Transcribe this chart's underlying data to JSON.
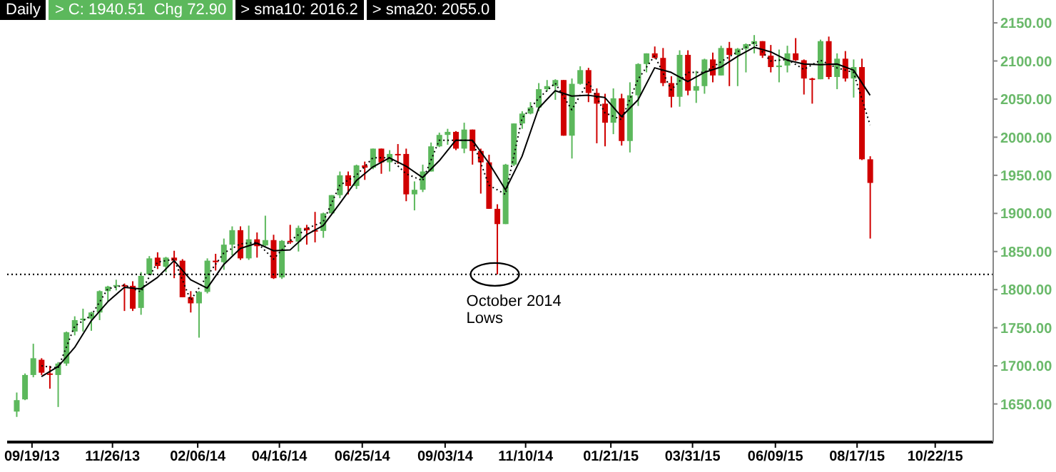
{
  "chart_data": {
    "type": "candlestick",
    "annotations": [
      "Daily",
      "> C: 1940.51  Chg 72.90",
      "> sma10: 2016.2",
      "> sma20: 2055.0",
      {
        "text": "October 2014\nLows",
        "x": "2014-10-15",
        "y": 1820
      }
    ],
    "xlim": [
      "2013-08-29",
      "2015-12-10"
    ],
    "xticks": [
      {
        "value": "2013-09-19",
        "label": "09/19/13"
      },
      {
        "value": "2013-11-26",
        "label": "11/26/13"
      },
      {
        "value": "2014-02-06",
        "label": "02/06/14"
      },
      {
        "value": "2014-04-16",
        "label": "04/16/14"
      },
      {
        "value": "2014-06-25",
        "label": "06/25/14"
      },
      {
        "value": "2014-09-03",
        "label": "09/03/14"
      },
      {
        "value": "2014-11-10",
        "label": "11/10/14"
      },
      {
        "value": "2015-01-21",
        "label": "01/21/15"
      },
      {
        "value": "2015-03-31",
        "label": "03/31/15"
      },
      {
        "value": "2015-06-09",
        "label": "06/09/15"
      },
      {
        "value": "2015-08-17",
        "label": "08/17/15"
      },
      {
        "value": "2015-10-22",
        "label": "10/22/15"
      }
    ],
    "ylim": [
      1600,
      2180
    ],
    "yticks": [
      {
        "value": 1650,
        "label": "1650.00"
      },
      {
        "value": 1700,
        "label": "1700.00"
      },
      {
        "value": 1750,
        "label": "1750.00"
      },
      {
        "value": 1800,
        "label": "1800.00"
      },
      {
        "value": 1850,
        "label": "1850.00"
      },
      {
        "value": 1900,
        "label": "1900.00"
      },
      {
        "value": 1950,
        "label": "1950.00"
      },
      {
        "value": 2000,
        "label": "2000.00"
      },
      {
        "value": 2050,
        "label": "2050.00"
      },
      {
        "value": 2100,
        "label": "2100.00"
      },
      {
        "value": 2150,
        "label": "2150.00"
      }
    ],
    "tick_labels": "xy",
    "marker": "none",
    "ref_lines": [
      {
        "axis": "y",
        "value": 1820,
        "color": "#000000",
        "line_style": "dotted"
      }
    ],
    "series": [
      {
        "type": "candlestick",
        "x": [
          "2013-09-06",
          "2013-09-13",
          "2013-09-20",
          "2013-09-27",
          "2013-10-04",
          "2013-10-11",
          "2013-10-18",
          "2013-10-25",
          "2013-11-01",
          "2013-11-08",
          "2013-11-15",
          "2013-11-22",
          "2013-11-29",
          "2013-12-06",
          "2013-12-13",
          "2013-12-20",
          "2013-12-27",
          "2014-01-03",
          "2014-01-10",
          "2014-01-17",
          "2014-01-24",
          "2014-01-31",
          "2014-02-07",
          "2014-02-14",
          "2014-02-21",
          "2014-02-28",
          "2014-03-07",
          "2014-03-14",
          "2014-03-21",
          "2014-03-28",
          "2014-04-04",
          "2014-04-11",
          "2014-04-18",
          "2014-04-25",
          "2014-05-02",
          "2014-05-09",
          "2014-05-16",
          "2014-05-23",
          "2014-05-30",
          "2014-06-06",
          "2014-06-13",
          "2014-06-20",
          "2014-06-27",
          "2014-07-04",
          "2014-07-11",
          "2014-07-18",
          "2014-07-25",
          "2014-08-01",
          "2014-08-08",
          "2014-08-15",
          "2014-08-22",
          "2014-08-29",
          "2014-09-05",
          "2014-09-12",
          "2014-09-19",
          "2014-09-26",
          "2014-10-03",
          "2014-10-10",
          "2014-10-17",
          "2014-10-24",
          "2014-10-31",
          "2014-11-07",
          "2014-11-14",
          "2014-11-21",
          "2014-11-28",
          "2014-12-05",
          "2014-12-12",
          "2014-12-19",
          "2014-12-26",
          "2015-01-02",
          "2015-01-09",
          "2015-01-16",
          "2015-01-23",
          "2015-01-30",
          "2015-02-06",
          "2015-02-13",
          "2015-02-20",
          "2015-02-27",
          "2015-03-06",
          "2015-03-13",
          "2015-03-20",
          "2015-03-27",
          "2015-04-03",
          "2015-04-10",
          "2015-04-17",
          "2015-04-24",
          "2015-05-01",
          "2015-05-08",
          "2015-05-15",
          "2015-05-22",
          "2015-05-29",
          "2015-06-05",
          "2015-06-12",
          "2015-06-19",
          "2015-06-26",
          "2015-07-03",
          "2015-07-10",
          "2015-07-17",
          "2015-07-24",
          "2015-07-31",
          "2015-08-07",
          "2015-08-14",
          "2015-08-21",
          "2015-08-28"
        ],
        "ohlc": [
          [
            1640,
            1665,
            1633,
            1655
          ],
          [
            1656,
            1690,
            1655,
            1688
          ],
          [
            1688,
            1729,
            1685,
            1710
          ],
          [
            1708,
            1710,
            1688,
            1691
          ],
          [
            1690,
            1700,
            1670,
            1690
          ],
          [
            1688,
            1705,
            1646,
            1703
          ],
          [
            1703,
            1745,
            1700,
            1744
          ],
          [
            1745,
            1765,
            1740,
            1760
          ],
          [
            1760,
            1775,
            1745,
            1762
          ],
          [
            1762,
            1771,
            1746,
            1770
          ],
          [
            1770,
            1799,
            1760,
            1798
          ],
          [
            1798,
            1805,
            1785,
            1804
          ],
          [
            1804,
            1813,
            1799,
            1806
          ],
          [
            1806,
            1808,
            1772,
            1805
          ],
          [
            1805,
            1811,
            1772,
            1775
          ],
          [
            1776,
            1823,
            1767,
            1818
          ],
          [
            1820,
            1844,
            1820,
            1841
          ],
          [
            1842,
            1849,
            1827,
            1831
          ],
          [
            1830,
            1843,
            1823,
            1842
          ],
          [
            1842,
            1851,
            1815,
            1838
          ],
          [
            1838,
            1840,
            1790,
            1790
          ],
          [
            1790,
            1798,
            1770,
            1782
          ],
          [
            1782,
            1798,
            1737,
            1797
          ],
          [
            1797,
            1841,
            1795,
            1838
          ],
          [
            1838,
            1847,
            1825,
            1836
          ],
          [
            1836,
            1867,
            1826,
            1859
          ],
          [
            1859,
            1883,
            1845,
            1878
          ],
          [
            1878,
            1883,
            1839,
            1841
          ],
          [
            1841,
            1884,
            1839,
            1866
          ],
          [
            1866,
            1875,
            1842,
            1857
          ],
          [
            1858,
            1897,
            1857,
            1865
          ],
          [
            1865,
            1872,
            1814,
            1815
          ],
          [
            1816,
            1865,
            1814,
            1864
          ],
          [
            1864,
            1885,
            1860,
            1863
          ],
          [
            1863,
            1884,
            1850,
            1881
          ],
          [
            1881,
            1885,
            1859,
            1878
          ],
          [
            1878,
            1902,
            1862,
            1877
          ],
          [
            1877,
            1901,
            1868,
            1900
          ],
          [
            1900,
            1924,
            1900,
            1924
          ],
          [
            1924,
            1955,
            1920,
            1950
          ],
          [
            1950,
            1955,
            1925,
            1936
          ],
          [
            1936,
            1964,
            1932,
            1963
          ],
          [
            1963,
            1968,
            1944,
            1960
          ],
          [
            1960,
            1985,
            1958,
            1985
          ],
          [
            1985,
            1985,
            1952,
            1967
          ],
          [
            1967,
            1983,
            1955,
            1978
          ],
          [
            1978,
            1991,
            1965,
            1978
          ],
          [
            1978,
            1985,
            1916,
            1925
          ],
          [
            1925,
            1942,
            1904,
            1931
          ],
          [
            1931,
            1964,
            1928,
            1955
          ],
          [
            1955,
            1993,
            1955,
            1988
          ],
          [
            1988,
            2006,
            1987,
            2003
          ],
          [
            2003,
            2011,
            1990,
            2007
          ],
          [
            2007,
            2008,
            1983,
            1985
          ],
          [
            1985,
            2019,
            1979,
            2010
          ],
          [
            2010,
            2010,
            1964,
            1982
          ],
          [
            1982,
            1985,
            1926,
            1967
          ],
          [
            1967,
            1977,
            1906,
            1906
          ],
          [
            1906,
            1912,
            1820,
            1886
          ],
          [
            1886,
            1965,
            1886,
            1964
          ],
          [
            1964,
            2018,
            1962,
            2018
          ],
          [
            2018,
            2034,
            2011,
            2031
          ],
          [
            2031,
            2046,
            2030,
            2039
          ],
          [
            2039,
            2071,
            2034,
            2063
          ],
          [
            2063,
            2075,
            2060,
            2067
          ],
          [
            2067,
            2076,
            2049,
            2075
          ],
          [
            2075,
            2075,
            2002,
            2002
          ],
          [
            2002,
            2077,
            1972,
            2070
          ],
          [
            2070,
            2093,
            2069,
            2088
          ],
          [
            2088,
            2091,
            2046,
            2058
          ],
          [
            2058,
            2064,
            1992,
            2044
          ],
          [
            2044,
            2057,
            1988,
            2019
          ],
          [
            2019,
            2064,
            2004,
            2051
          ],
          [
            2051,
            2057,
            1989,
            1995
          ],
          [
            1995,
            2072,
            1980,
            2055
          ],
          [
            2055,
            2097,
            2041,
            2096
          ],
          [
            2096,
            2110,
            2085,
            2110
          ],
          [
            2110,
            2119,
            2103,
            2104
          ],
          [
            2104,
            2117,
            2067,
            2071
          ],
          [
            2071,
            2080,
            2039,
            2053
          ],
          [
            2053,
            2114,
            2040,
            2108
          ],
          [
            2108,
            2114,
            2055,
            2061
          ],
          [
            2061,
            2087,
            2045,
            2067
          ],
          [
            2067,
            2103,
            2057,
            2102
          ],
          [
            2102,
            2111,
            2072,
            2081
          ],
          [
            2081,
            2120,
            2081,
            2117
          ],
          [
            2117,
            2125,
            2067,
            2108
          ],
          [
            2108,
            2117,
            2067,
            2116
          ],
          [
            2116,
            2123,
            2085,
            2122
          ],
          [
            2122,
            2134,
            2110,
            2126
          ],
          [
            2126,
            2126,
            2104,
            2107
          ],
          [
            2107,
            2121,
            2085,
            2092
          ],
          [
            2092,
            2115,
            2072,
            2094
          ],
          [
            2094,
            2120,
            2085,
            2110
          ],
          [
            2110,
            2130,
            2100,
            2101
          ],
          [
            2101,
            2102,
            2056,
            2077
          ],
          [
            2077,
            2078,
            2044,
            2076
          ],
          [
            2076,
            2128,
            2076,
            2126
          ],
          [
            2126,
            2132,
            2076,
            2079
          ],
          [
            2079,
            2110,
            2063,
            2103
          ],
          [
            2103,
            2113,
            2073,
            2077
          ],
          [
            2077,
            2102,
            2052,
            2092
          ],
          [
            2092,
            2103,
            1970,
            1971
          ],
          [
            1971,
            1975,
            1867,
            1940
          ]
        ],
        "colors": [
          "#5cb85c",
          "#5cb85c",
          "#5cb85c",
          "#d00000",
          "#d00000",
          "#5cb85c",
          "#5cb85c",
          "#5cb85c",
          "#5cb85c",
          "#5cb85c",
          "#5cb85c",
          "#5cb85c",
          "#5cb85c",
          "#d00000",
          "#d00000",
          "#5cb85c",
          "#5cb85c",
          "#d00000",
          "#5cb85c",
          "#d00000",
          "#d00000",
          "#d00000",
          "#5cb85c",
          "#5cb85c",
          "#d00000",
          "#5cb85c",
          "#5cb85c",
          "#d00000",
          "#5cb85c",
          "#d00000",
          "#5cb85c",
          "#d00000",
          "#5cb85c",
          "#d00000",
          "#5cb85c",
          "#d00000",
          "#d00000",
          "#5cb85c",
          "#5cb85c",
          "#5cb85c",
          "#d00000",
          "#5cb85c",
          "#d00000",
          "#5cb85c",
          "#d00000",
          "#5cb85c",
          "#d00000",
          "#d00000",
          "#5cb85c",
          "#5cb85c",
          "#5cb85c",
          "#5cb85c",
          "#5cb85c",
          "#d00000",
          "#5cb85c",
          "#d00000",
          "#d00000",
          "#d00000",
          "#d00000",
          "#5cb85c",
          "#5cb85c",
          "#5cb85c",
          "#5cb85c",
          "#5cb85c",
          "#5cb85c",
          "#5cb85c",
          "#d00000",
          "#5cb85c",
          "#5cb85c",
          "#d00000",
          "#d00000",
          "#d00000",
          "#5cb85c",
          "#d00000",
          "#5cb85c",
          "#5cb85c",
          "#5cb85c",
          "#d00000",
          "#d00000",
          "#d00000",
          "#5cb85c",
          "#d00000",
          "#5cb85c",
          "#5cb85c",
          "#d00000",
          "#5cb85c",
          "#d00000",
          "#5cb85c",
          "#5cb85c",
          "#5cb85c",
          "#d00000",
          "#d00000",
          "#5cb85c",
          "#5cb85c",
          "#d00000",
          "#d00000",
          "#d00000",
          "#5cb85c",
          "#d00000",
          "#5cb85c",
          "#d00000",
          "#5cb85c",
          "#d00000",
          "#d00000"
        ]
      },
      {
        "type": "line",
        "color": "#000000",
        "line_style": "dotted",
        "x": [
          "2013-09-27",
          "2013-10-11",
          "2013-10-25",
          "2013-11-08",
          "2013-11-22",
          "2013-12-06",
          "2013-12-20",
          "2014-01-03",
          "2014-01-17",
          "2014-01-31",
          "2014-02-14",
          "2014-02-28",
          "2014-03-14",
          "2014-03-28",
          "2014-04-11",
          "2014-04-25",
          "2014-05-09",
          "2014-05-23",
          "2014-06-06",
          "2014-06-20",
          "2014-07-04",
          "2014-07-18",
          "2014-08-01",
          "2014-08-15",
          "2014-08-29",
          "2014-09-12",
          "2014-09-26",
          "2014-10-10",
          "2014-10-24",
          "2014-11-07",
          "2014-11-21",
          "2014-12-05",
          "2014-12-19",
          "2015-01-02",
          "2015-01-16",
          "2015-01-30",
          "2015-02-13",
          "2015-02-27",
          "2015-03-13",
          "2015-03-27",
          "2015-04-10",
          "2015-04-24",
          "2015-05-08",
          "2015-05-22",
          "2015-06-05",
          "2015-06-19",
          "2015-07-03",
          "2015-07-17",
          "2015-07-31",
          "2015-08-14",
          "2015-08-28"
        ],
        "values": [
          1700,
          1697,
          1752,
          1766,
          1801,
          1806,
          1797,
          1836,
          1840,
          1786,
          1818,
          1848,
          1860,
          1862,
          1840,
          1864,
          1880,
          1889,
          1937,
          1950,
          1973,
          1973,
          1952,
          1943,
          1996,
          1996,
          1996,
          1937,
          1925,
          2025,
          2051,
          2071,
          2036,
          2073,
          2032,
          2023,
          2076,
          2107,
          2062,
          2085,
          2085,
          2099,
          2112,
          2124,
          2100,
          2102,
          2089,
          2101,
          2091,
          2085,
          2016
        ]
      },
      {
        "type": "line",
        "color": "#000000",
        "line_style": "solid",
        "x": [
          "2013-09-27",
          "2013-10-11",
          "2013-10-25",
          "2013-11-08",
          "2013-11-22",
          "2013-12-06",
          "2013-12-20",
          "2014-01-03",
          "2014-01-17",
          "2014-01-31",
          "2014-02-14",
          "2014-02-28",
          "2014-03-14",
          "2014-03-28",
          "2014-04-11",
          "2014-04-25",
          "2014-05-09",
          "2014-05-23",
          "2014-06-06",
          "2014-06-20",
          "2014-07-04",
          "2014-07-18",
          "2014-08-01",
          "2014-08-15",
          "2014-08-29",
          "2014-09-12",
          "2014-09-26",
          "2014-10-10",
          "2014-10-24",
          "2014-11-07",
          "2014-11-21",
          "2014-12-05",
          "2014-12-19",
          "2015-01-02",
          "2015-01-16",
          "2015-01-30",
          "2015-02-13",
          "2015-02-27",
          "2015-03-13",
          "2015-03-27",
          "2015-04-10",
          "2015-04-24",
          "2015-05-08",
          "2015-05-22",
          "2015-06-05",
          "2015-06-19",
          "2015-07-03",
          "2015-07-17",
          "2015-07-31",
          "2015-08-14",
          "2015-08-28"
        ],
        "values": [
          1686,
          1699,
          1724,
          1759,
          1784,
          1803,
          1801,
          1816,
          1838,
          1813,
          1802,
          1833,
          1854,
          1861,
          1851,
          1852,
          1872,
          1884,
          1913,
          1943,
          1961,
          1973,
          1962,
          1947,
          1969,
          1996,
          1996,
          1966,
          1931,
          1975,
          2038,
          2061,
          2054,
          2055,
          2052,
          2027,
          2049,
          2091,
          2085,
          2073,
          2085,
          2092,
          2106,
          2118,
          2112,
          2101,
          2096,
          2095,
          2096,
          2088,
          2055
        ]
      }
    ]
  }
}
